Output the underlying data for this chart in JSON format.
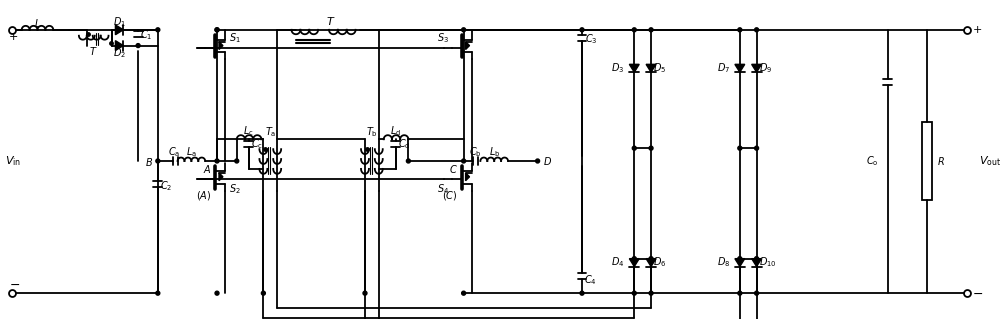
{
  "bg_color": "#ffffff",
  "line_color": "#000000",
  "lw": 1.3,
  "fig_width": 10.0,
  "fig_height": 3.21
}
